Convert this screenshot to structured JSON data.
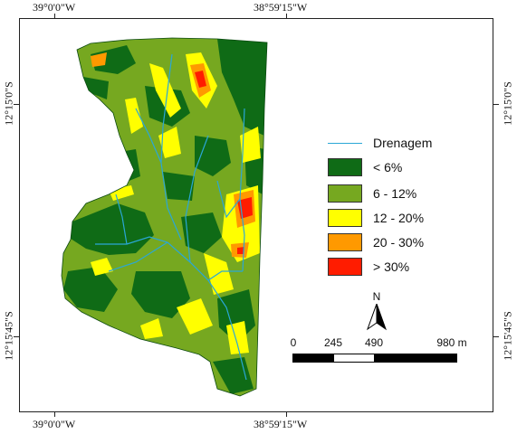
{
  "coordinates": {
    "top_left": "39°0'0\"W",
    "top_right": "38°59'15\"W",
    "bottom_left": "39°0'0\"W",
    "bottom_right": "38°59'15\"W",
    "left_upper": "12°15'0\"S",
    "left_lower": "12°15'45\"S",
    "right_upper": "12°15'0\"S",
    "right_lower": "12°15'45\"S"
  },
  "legend": {
    "drainage_label": "Drenagem",
    "drainage_color": "#2aa7d6",
    "classes": [
      {
        "label": "< 6%",
        "color": "#0f6b16"
      },
      {
        "label": "6 - 12%",
        "color": "#76a820"
      },
      {
        "label": "12 - 20%",
        "color": "#ffff00"
      },
      {
        "label": "20 - 30%",
        "color": "#ff9900"
      },
      {
        "label": "> 30%",
        "color": "#ff1c00"
      }
    ]
  },
  "north_arrow": {
    "label": "N"
  },
  "scale_bar": {
    "labels": [
      "0",
      "245",
      "490",
      "980 m"
    ]
  }
}
